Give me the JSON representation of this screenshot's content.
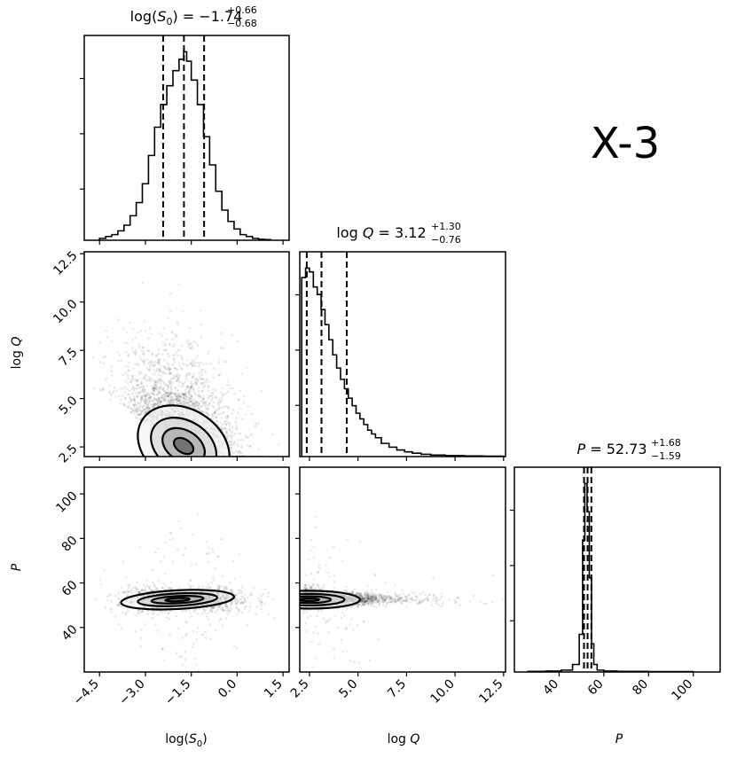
{
  "chart_data": {
    "type": "corner",
    "label": "X-3",
    "parameters": [
      {
        "name": "log(S0)",
        "display": "log(S",
        "sub": "0",
        "display_end": ")",
        "median": -1.74,
        "plus": 0.66,
        "minus": 0.68,
        "title_prefix": "log(S",
        "title_sub": "0",
        "title_mid": ") = −1.74",
        "title_sup": "+0.66",
        "title_low": "−0.68",
        "xlabel": "log(S₀)",
        "range": [
          -5.0,
          1.7
        ],
        "ticks": [
          "−4.5",
          "−3.0",
          "−1.5",
          "0.0",
          "1.5"
        ],
        "tick_values": [
          -4.5,
          -3.0,
          -1.5,
          0.0,
          1.5
        ]
      },
      {
        "name": "log Q",
        "median": 3.12,
        "plus": 1.3,
        "minus": 0.76,
        "title_prefix": "log ",
        "title_italic": "Q",
        "title_mid": " = 3.12",
        "title_sup": "+1.30",
        "title_low": "−0.76",
        "xlabel": "log Q",
        "ylabel": "log Q",
        "range": [
          2.0,
          12.6
        ],
        "ticks": [
          "2.5",
          "5.0",
          "7.5",
          "10.0",
          "12.5"
        ],
        "tick_values": [
          2.5,
          5.0,
          7.5,
          10.0,
          12.5
        ]
      },
      {
        "name": "P",
        "median": 52.73,
        "plus": 1.68,
        "minus": 1.59,
        "title_prefix": "",
        "title_italic": "P",
        "title_mid": " = 52.73",
        "title_sup": "+1.68",
        "title_low": "−1.59",
        "xlabel": "P",
        "ylabel": "P",
        "range": [
          20,
          112
        ],
        "ticks": [
          "40",
          "60",
          "80",
          "100"
        ],
        "tick_values": [
          40,
          60,
          80,
          100
        ]
      }
    ],
    "histograms": {
      "logS0": {
        "bin_centers": [
          -4.4,
          -4.2,
          -4.0,
          -3.8,
          -3.6,
          -3.4,
          -3.2,
          -3.0,
          -2.8,
          -2.6,
          -2.4,
          -2.2,
          -2.0,
          -1.8,
          -1.7,
          -1.6,
          -1.4,
          -1.2,
          -1.0,
          -0.8,
          -0.6,
          -0.4,
          -0.2,
          0.0,
          0.2,
          0.4,
          0.6,
          0.8,
          1.0
        ],
        "counts": [
          0.01,
          0.02,
          0.03,
          0.05,
          0.08,
          0.13,
          0.2,
          0.3,
          0.45,
          0.6,
          0.72,
          0.82,
          0.9,
          0.96,
          1.0,
          0.95,
          0.85,
          0.72,
          0.55,
          0.4,
          0.26,
          0.16,
          0.1,
          0.06,
          0.03,
          0.02,
          0.01,
          0.005,
          0.003
        ]
      },
      "logQ": {
        "bin_centers": [
          2.2,
          2.4,
          2.6,
          2.8,
          3.0,
          3.2,
          3.4,
          3.6,
          3.8,
          4.0,
          4.2,
          4.4,
          4.6,
          4.8,
          5.0,
          5.2,
          5.4,
          5.6,
          5.8,
          6.0,
          6.4,
          6.8,
          7.2,
          7.6,
          8.0,
          8.5,
          9.0,
          10.0,
          11.0,
          12.0
        ],
        "counts": [
          0.95,
          1.0,
          0.98,
          0.9,
          0.86,
          0.78,
          0.7,
          0.62,
          0.54,
          0.47,
          0.41,
          0.36,
          0.31,
          0.27,
          0.23,
          0.2,
          0.17,
          0.14,
          0.12,
          0.1,
          0.07,
          0.05,
          0.035,
          0.025,
          0.018,
          0.012,
          0.008,
          0.005,
          0.003,
          0.002
        ]
      },
      "P": {
        "bin_centers": [
          30,
          38,
          44,
          48,
          50,
          51,
          52,
          53,
          54,
          55,
          56,
          58,
          62,
          70,
          90
        ],
        "counts": [
          0.003,
          0.005,
          0.01,
          0.04,
          0.2,
          0.7,
          1.0,
          0.85,
          0.5,
          0.15,
          0.04,
          0.01,
          0.005,
          0.003,
          0.002
        ]
      }
    },
    "quantile_lines": {
      "logS0": [
        -2.42,
        -1.74,
        -1.08
      ],
      "logQ": [
        2.36,
        3.12,
        4.42
      ],
      "P": [
        51.14,
        52.73,
        54.41
      ]
    },
    "contours": {
      "logQ_vs_logS0": {
        "center": [
          -1.74,
          2.8
        ],
        "tilt_slope": -0.8
      },
      "P_vs_logS0": {
        "center": [
          -1.9,
          52.7
        ]
      },
      "P_vs_logQ": {
        "center": [
          3.0,
          52.7
        ]
      }
    },
    "axis_labels": {
      "x": [
        "log(S₀)",
        "log Q",
        "P"
      ],
      "y": [
        "log Q",
        "P"
      ]
    }
  }
}
